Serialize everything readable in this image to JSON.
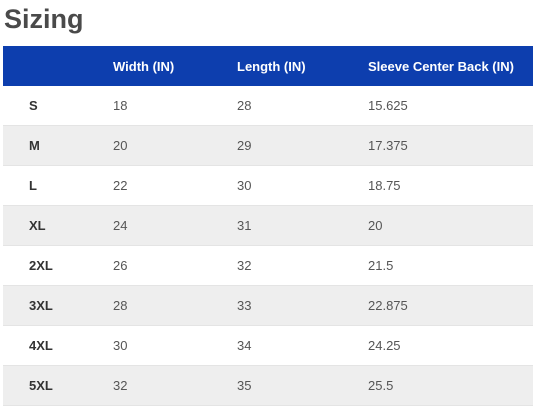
{
  "page_title": "Sizing",
  "colors": {
    "header_bg": "#0d3eae",
    "header_text": "#ffffff",
    "stripe": "#eeeeee",
    "title_text": "#4a4a4a"
  },
  "table": {
    "headers": [
      "",
      "Width (IN)",
      "Length (IN)",
      "Sleeve Center Back (IN)"
    ],
    "rows": [
      {
        "size": "S",
        "width": "18",
        "length": "28",
        "sleeve": "15.625"
      },
      {
        "size": "M",
        "width": "20",
        "length": "29",
        "sleeve": "17.375"
      },
      {
        "size": "L",
        "width": "22",
        "length": "30",
        "sleeve": "18.75"
      },
      {
        "size": "XL",
        "width": "24",
        "length": "31",
        "sleeve": "20"
      },
      {
        "size": "2XL",
        "width": "26",
        "length": "32",
        "sleeve": "21.5"
      },
      {
        "size": "3XL",
        "width": "28",
        "length": "33",
        "sleeve": "22.875"
      },
      {
        "size": "4XL",
        "width": "30",
        "length": "34",
        "sleeve": "24.25"
      },
      {
        "size": "5XL",
        "width": "32",
        "length": "35",
        "sleeve": "25.5"
      }
    ]
  }
}
